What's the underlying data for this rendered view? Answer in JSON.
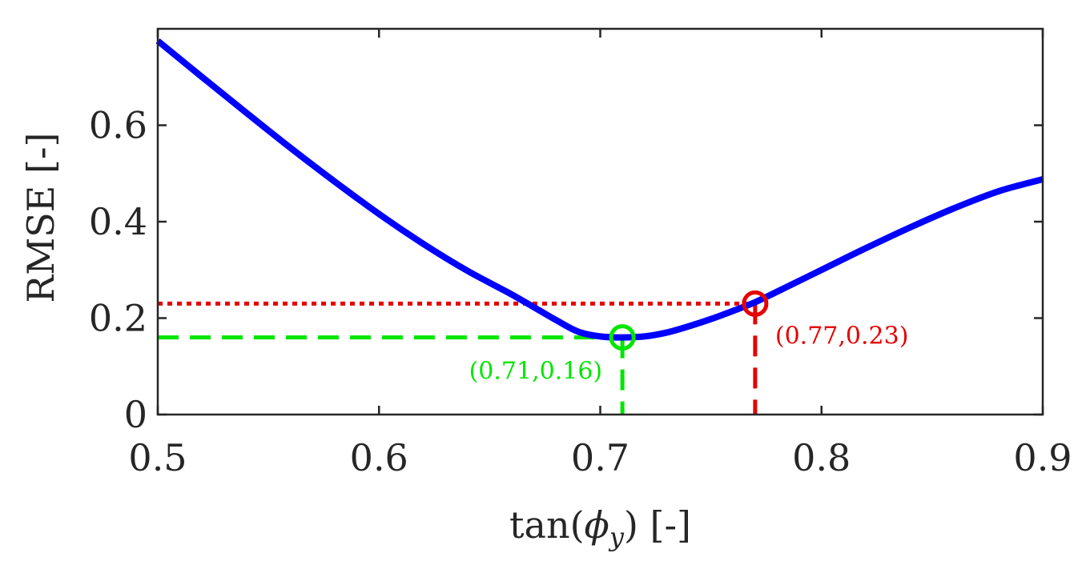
{
  "chart_data": {
    "type": "line",
    "title": "",
    "xlabel": "tan(ϕ_y) [-]",
    "xlabel_parts": {
      "pre": "tan(",
      "symbol": "ϕ",
      "sub": "y",
      "post": ")  [-]"
    },
    "ylabel": "RMSE [-]",
    "xlim": [
      0.5,
      0.9
    ],
    "ylim": [
      0,
      0.8
    ],
    "xticks": [
      0.5,
      0.6,
      0.7,
      0.8,
      0.9
    ],
    "xtick_labels": [
      "0.5",
      "0.6",
      "0.7",
      "0.8",
      "0.9"
    ],
    "yticks": [
      0,
      0.2,
      0.4,
      0.6
    ],
    "ytick_labels": [
      "0",
      "0.2",
      "0.4",
      "0.6"
    ],
    "grid": false,
    "series": [
      {
        "name": "RMSE curve",
        "color": "#0000ff",
        "x": [
          0.5,
          0.52,
          0.54,
          0.56,
          0.58,
          0.6,
          0.62,
          0.64,
          0.66,
          0.68,
          0.69,
          0.7,
          0.71,
          0.72,
          0.73,
          0.74,
          0.75,
          0.76,
          0.77,
          0.78,
          0.8,
          0.82,
          0.84,
          0.86,
          0.88,
          0.9
        ],
        "y": [
          0.775,
          0.7,
          0.626,
          0.553,
          0.483,
          0.416,
          0.354,
          0.298,
          0.249,
          0.196,
          0.172,
          0.162,
          0.16,
          0.162,
          0.17,
          0.183,
          0.198,
          0.215,
          0.233,
          0.255,
          0.3,
          0.345,
          0.388,
          0.428,
          0.463,
          0.488
        ]
      }
    ],
    "markers": [
      {
        "name": "optimum",
        "x": 0.71,
        "y": 0.16,
        "label": "(0.71,0.16)",
        "color": "#00e600",
        "guide_style": "dashed",
        "label_position": "below-left"
      },
      {
        "name": "selected",
        "x": 0.77,
        "y": 0.23,
        "label": "(0.77,0.23)",
        "color": "#e60000",
        "guide_style": "dotted-horizontal-dashed-vertical",
        "label_position": "below-right"
      }
    ]
  }
}
